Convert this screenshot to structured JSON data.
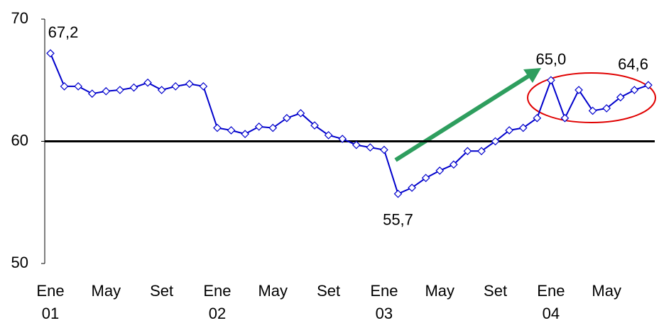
{
  "chart_data": {
    "type": "line",
    "categories": [
      [
        "Ene",
        "01"
      ],
      null,
      null,
      null,
      [
        "May"
      ],
      null,
      null,
      null,
      [
        "Set"
      ],
      null,
      null,
      null,
      [
        "Ene",
        "02"
      ],
      null,
      null,
      null,
      [
        "May"
      ],
      null,
      null,
      null,
      [
        "Set"
      ],
      null,
      null,
      null,
      [
        "Ene",
        "03"
      ],
      null,
      null,
      null,
      [
        "May"
      ],
      null,
      null,
      null,
      [
        "Set"
      ],
      null,
      null,
      null,
      [
        "Ene",
        "04"
      ],
      null,
      null,
      null,
      [
        "May"
      ],
      null,
      null,
      null
    ],
    "series": [
      {
        "color": "#0000cc",
        "values": [
          67.2,
          64.5,
          64.5,
          63.9,
          64.1,
          64.2,
          64.4,
          64.8,
          64.2,
          64.5,
          64.7,
          64.5,
          61.1,
          60.9,
          60.6,
          61.2,
          61.1,
          61.9,
          62.3,
          61.3,
          60.5,
          60.2,
          59.7,
          59.5,
          59.3,
          55.7,
          56.2,
          57.0,
          57.6,
          58.1,
          59.2,
          59.2,
          60.0,
          60.9,
          61.1,
          61.9,
          65.0,
          61.9,
          64.2,
          62.5,
          62.7,
          63.6,
          64.2,
          64.6
        ],
        "value_labels": [
          "67,2",
          null,
          null,
          null,
          null,
          null,
          null,
          null,
          null,
          null,
          null,
          null,
          null,
          null,
          null,
          null,
          null,
          null,
          null,
          null,
          null,
          null,
          null,
          null,
          null,
          "55,7",
          null,
          null,
          null,
          null,
          null,
          null,
          null,
          null,
          null,
          null,
          "65,0",
          null,
          null,
          null,
          null,
          null,
          null,
          "64,6"
        ]
      }
    ],
    "reference_line": 60,
    "ylim": [
      50,
      70
    ],
    "yticks": [
      50,
      60,
      70
    ]
  }
}
